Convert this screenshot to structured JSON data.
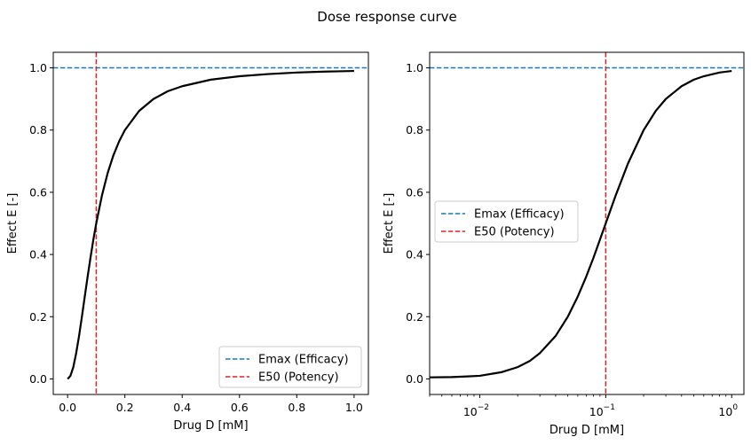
{
  "figure": {
    "suptitle": "Dose response curve"
  },
  "colors": {
    "emax": "#1f77b4",
    "e50": "#d62728",
    "curve": "#000000"
  },
  "chart_data": [
    {
      "type": "line",
      "xscale": "linear",
      "xlabel": "Drug D [mM]",
      "ylabel": "Effect E [-]",
      "xlim": [
        -0.05,
        1.05
      ],
      "ylim": [
        -0.05,
        1.05
      ],
      "xticks": [
        0.0,
        0.2,
        0.4,
        0.6,
        0.8,
        1.0
      ],
      "xtick_labels": [
        "0.0",
        "0.2",
        "0.4",
        "0.6",
        "0.8",
        "1.0"
      ],
      "yticks": [
        0.0,
        0.2,
        0.4,
        0.6,
        0.8,
        1.0
      ],
      "ytick_labels": [
        "0.0",
        "0.2",
        "0.4",
        "0.6",
        "0.8",
        "1.0"
      ],
      "grid": false,
      "series": [
        {
          "color": "#000000",
          "style": "solid",
          "x": [
            0.0,
            0.01,
            0.02,
            0.03,
            0.04,
            0.05,
            0.06,
            0.07,
            0.08,
            0.09,
            0.1,
            0.12,
            0.14,
            0.16,
            0.18,
            0.2,
            0.25,
            0.3,
            0.35,
            0.4,
            0.5,
            0.6,
            0.7,
            0.8,
            0.9,
            1.0
          ],
          "y": [
            0.0,
            0.01,
            0.038,
            0.083,
            0.138,
            0.2,
            0.265,
            0.329,
            0.39,
            0.448,
            0.5,
            0.59,
            0.662,
            0.719,
            0.764,
            0.8,
            0.862,
            0.9,
            0.925,
            0.941,
            0.962,
            0.973,
            0.98,
            0.985,
            0.988,
            0.99
          ]
        }
      ],
      "hlines": [
        {
          "y": 1.0,
          "label": "Emax (Efficacy)",
          "color": "#1f77b4",
          "style": "dashed"
        }
      ],
      "vlines": [
        {
          "x": 0.1,
          "label": "E50 (Potency)",
          "color": "#d62728",
          "style": "dashed"
        }
      ],
      "legend": {
        "position": "lower right",
        "entries": [
          "Emax (Efficacy)",
          "E50 (Potency)"
        ]
      }
    },
    {
      "type": "line",
      "xscale": "log",
      "xlabel": "Drug D [mM]",
      "ylabel": "Effect E [-]",
      "xlim": [
        0.004,
        1.25
      ],
      "ylim": [
        -0.05,
        1.05
      ],
      "xticks": [
        0.01,
        0.1,
        1.0
      ],
      "xtick_labels": [
        [
          "10",
          "−2"
        ],
        [
          "10",
          "−1"
        ],
        [
          "10",
          "0"
        ]
      ],
      "yticks": [
        0.0,
        0.2,
        0.4,
        0.6,
        0.8,
        1.0
      ],
      "ytick_labels": [
        "0.0",
        "0.2",
        "0.4",
        "0.6",
        "0.8",
        "1.0"
      ],
      "grid": false,
      "series": [
        {
          "color": "#000000",
          "style": "solid",
          "x": [
            0.004,
            0.006,
            0.008,
            0.01,
            0.015,
            0.02,
            0.025,
            0.03,
            0.04,
            0.05,
            0.06,
            0.07,
            0.08,
            0.1,
            0.12,
            0.15,
            0.2,
            0.25,
            0.3,
            0.4,
            0.5,
            0.6,
            0.8,
            1.0
          ],
          "y": [
            0.005,
            0.006,
            0.008,
            0.01,
            0.022,
            0.038,
            0.058,
            0.083,
            0.138,
            0.2,
            0.265,
            0.329,
            0.39,
            0.5,
            0.59,
            0.692,
            0.8,
            0.862,
            0.9,
            0.941,
            0.962,
            0.973,
            0.985,
            0.99
          ]
        }
      ],
      "hlines": [
        {
          "y": 1.0,
          "label": "Emax (Efficacy)",
          "color": "#1f77b4",
          "style": "dashed"
        }
      ],
      "vlines": [
        {
          "x": 0.1,
          "label": "E50 (Potency)",
          "color": "#d62728",
          "style": "dashed"
        }
      ],
      "legend": {
        "position": "center left",
        "entries": [
          "Emax (Efficacy)",
          "E50 (Potency)"
        ]
      }
    }
  ]
}
